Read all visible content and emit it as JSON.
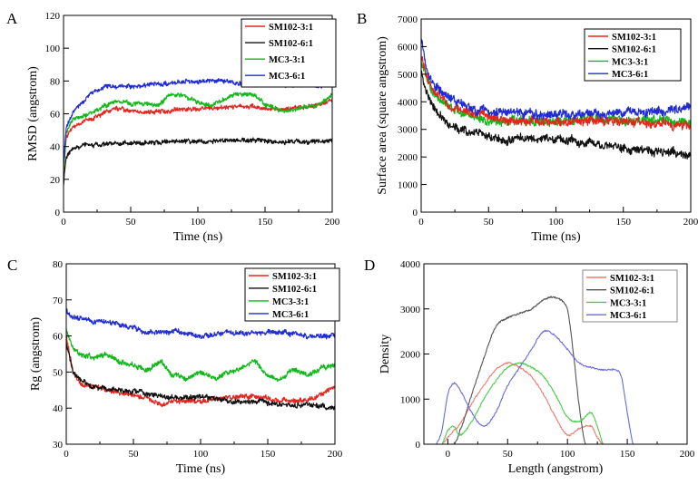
{
  "colors": {
    "SM102-3:1": "#e8231c",
    "SM102-6:1": "#111111",
    "MC3-3:1": "#12b81a",
    "MC3-6:1": "#1f2bd6",
    "D_red": "#f07a70",
    "D_black": "#555555",
    "D_green": "#4ccc4c",
    "D_blue": "#6a6ae0"
  },
  "chart_data": [
    {
      "panel": "A",
      "type": "line",
      "title": "",
      "xlabel": "Time (ns)",
      "ylabel": "RMSD (angstrom)",
      "xlim": [
        0,
        200
      ],
      "ylim": [
        0,
        120
      ],
      "xticks": [
        0,
        50,
        100,
        150,
        200
      ],
      "yticks": [
        0,
        20,
        40,
        60,
        80,
        100,
        120
      ],
      "legend": [
        "SM102-3:1",
        "SM102-6:1",
        "MC3-3:1",
        "MC3-6:1"
      ],
      "legend_position": "top-right",
      "noise": 1.4,
      "series": [
        {
          "name": "SM102-6:1",
          "x": [
            0,
            2,
            5,
            10,
            20,
            40,
            60,
            80,
            100,
            120,
            140,
            160,
            180,
            200
          ],
          "y": [
            18,
            34,
            38,
            40,
            41,
            42,
            42,
            43,
            43,
            44,
            44,
            43,
            43,
            43
          ]
        },
        {
          "name": "SM102-3:1",
          "x": [
            0,
            2,
            5,
            10,
            20,
            30,
            40,
            50,
            60,
            80,
            100,
            120,
            140,
            160,
            180,
            190,
            200
          ],
          "y": [
            25,
            45,
            50,
            54,
            57,
            60,
            63,
            62,
            61,
            62,
            63,
            64,
            64,
            63,
            64,
            65,
            68
          ]
        },
        {
          "name": "MC3-3:1",
          "x": [
            0,
            2,
            5,
            10,
            20,
            30,
            40,
            50,
            60,
            70,
            80,
            90,
            100,
            110,
            120,
            130,
            140,
            150,
            160,
            170,
            180,
            190,
            200
          ],
          "y": [
            25,
            48,
            54,
            57,
            60,
            65,
            68,
            66,
            67,
            65,
            72,
            71,
            67,
            65,
            69,
            72,
            72,
            66,
            62,
            62,
            64,
            65,
            72
          ]
        },
        {
          "name": "MC3-6:1",
          "x": [
            0,
            2,
            5,
            10,
            20,
            30,
            40,
            60,
            80,
            100,
            120,
            140,
            160,
            180,
            200
          ],
          "y": [
            30,
            52,
            58,
            63,
            72,
            76,
            77,
            77,
            79,
            80,
            80,
            78,
            78,
            77,
            78
          ]
        }
      ]
    },
    {
      "panel": "B",
      "type": "line",
      "title": "",
      "xlabel": "Time (ns)",
      "ylabel": "Surface area (square angstrom)",
      "xlim": [
        0,
        200
      ],
      "ylim": [
        0,
        7000
      ],
      "xticks": [
        0,
        50,
        100,
        150,
        200
      ],
      "yticks": [
        0,
        1000,
        2000,
        3000,
        4000,
        5000,
        6000,
        7000
      ],
      "legend": [
        "SM102-3:1",
        "SM102-6:1",
        "MC3-3:1",
        "MC3-6:1"
      ],
      "legend_position": "top-right",
      "noise": 160,
      "series": [
        {
          "name": "MC3-3:1",
          "x": [
            0,
            5,
            10,
            20,
            30,
            50,
            75,
            100,
            125,
            150,
            175,
            200
          ],
          "y": [
            5500,
            4700,
            4200,
            3800,
            3600,
            3300,
            3300,
            3300,
            3400,
            3300,
            3300,
            3300
          ]
        },
        {
          "name": "SM102-3:1",
          "x": [
            0,
            5,
            10,
            20,
            30,
            50,
            75,
            100,
            125,
            150,
            175,
            200
          ],
          "y": [
            5600,
            4800,
            4300,
            3900,
            3700,
            3400,
            3300,
            3300,
            3300,
            3300,
            3200,
            3100
          ]
        },
        {
          "name": "MC3-6:1",
          "x": [
            0,
            5,
            10,
            20,
            30,
            50,
            75,
            100,
            125,
            150,
            175,
            200
          ],
          "y": [
            6300,
            5000,
            4600,
            4100,
            3900,
            3600,
            3600,
            3500,
            3600,
            3600,
            3700,
            3800
          ]
        },
        {
          "name": "SM102-6:1",
          "x": [
            0,
            5,
            10,
            20,
            30,
            50,
            60,
            75,
            100,
            125,
            150,
            175,
            200
          ],
          "y": [
            5000,
            4200,
            3700,
            3200,
            3000,
            2800,
            2600,
            2700,
            2600,
            2500,
            2300,
            2200,
            2000
          ]
        }
      ]
    },
    {
      "panel": "C",
      "type": "line",
      "title": "",
      "xlabel": "Time (ns)",
      "ylabel": "Rg (angstrom)",
      "xlim": [
        0,
        200
      ],
      "ylim": [
        30,
        80
      ],
      "xticks": [
        0,
        50,
        100,
        150,
        200
      ],
      "yticks": [
        30,
        40,
        50,
        60,
        70,
        80
      ],
      "legend": [
        "SM102-3:1",
        "SM102-6:1",
        "MC3-3:1",
        "MC3-6:1"
      ],
      "legend_position": "top-right",
      "noise": 0.7,
      "series": [
        {
          "name": "MC3-6:1",
          "x": [
            0,
            5,
            10,
            20,
            30,
            40,
            50,
            60,
            80,
            100,
            120,
            140,
            160,
            180,
            200
          ],
          "y": [
            67,
            65,
            65,
            64,
            64,
            63,
            62,
            61,
            61,
            60,
            61,
            61,
            61,
            60,
            60
          ]
        },
        {
          "name": "MC3-3:1",
          "x": [
            0,
            5,
            10,
            20,
            30,
            40,
            50,
            60,
            70,
            80,
            90,
            100,
            110,
            120,
            130,
            140,
            150,
            160,
            170,
            180,
            190,
            200
          ],
          "y": [
            62,
            57,
            55,
            54,
            55,
            53,
            52,
            50,
            53,
            49,
            48,
            50,
            48,
            50,
            51,
            53,
            49,
            48,
            51,
            49,
            51,
            52
          ]
        },
        {
          "name": "SM102-3:1",
          "x": [
            0,
            5,
            10,
            20,
            40,
            60,
            70,
            80,
            100,
            120,
            140,
            160,
            180,
            190,
            200
          ],
          "y": [
            60,
            50,
            47,
            46,
            44,
            43,
            41,
            42,
            42,
            43,
            43,
            42,
            42,
            44,
            46
          ]
        },
        {
          "name": "SM102-6:1",
          "x": [
            0,
            5,
            10,
            20,
            40,
            60,
            80,
            100,
            120,
            140,
            160,
            180,
            200
          ],
          "y": [
            58,
            50,
            48,
            46,
            45,
            44,
            43,
            43,
            42,
            42,
            41,
            41,
            40
          ]
        }
      ]
    },
    {
      "panel": "D",
      "type": "line",
      "title": "",
      "xlabel": "Length (angstrom)",
      "ylabel": "Density",
      "xlim": [
        -20,
        200
      ],
      "ylim": [
        0,
        4000
      ],
      "xticks": [
        0,
        50,
        100,
        150,
        200
      ],
      "yticks": [
        0,
        1000,
        2000,
        3000,
        4000
      ],
      "legend": [
        "SM102-3:1",
        "SM102-6:1",
        "MC3-3:1",
        "MC3-6:1"
      ],
      "legend_position": "top-right",
      "noise": 0,
      "series": [
        {
          "name": "SM102-3:1",
          "x": [
            -5,
            0,
            5,
            10,
            20,
            30,
            40,
            50,
            60,
            70,
            80,
            90,
            100,
            110,
            120,
            125,
            130
          ],
          "y": [
            0,
            150,
            300,
            450,
            900,
            1300,
            1650,
            1800,
            1700,
            1500,
            1100,
            600,
            200,
            350,
            400,
            150,
            0
          ]
        },
        {
          "name": "SM102-6:1",
          "x": [
            5,
            10,
            20,
            30,
            40,
            50,
            60,
            70,
            80,
            90,
            100,
            105,
            110,
            115
          ],
          "y": [
            0,
            300,
            1100,
            1900,
            2600,
            2800,
            2900,
            3000,
            3200,
            3250,
            3000,
            2000,
            800,
            0
          ]
        },
        {
          "name": "MC3-3:1",
          "x": [
            -5,
            0,
            5,
            10,
            20,
            30,
            40,
            50,
            60,
            70,
            80,
            90,
            100,
            110,
            120,
            125,
            130
          ],
          "y": [
            0,
            300,
            400,
            200,
            500,
            1000,
            1400,
            1700,
            1800,
            1700,
            1500,
            1100,
            600,
            500,
            700,
            400,
            0
          ]
        },
        {
          "name": "MC3-6:1",
          "x": [
            -10,
            -5,
            0,
            5,
            10,
            20,
            30,
            40,
            50,
            60,
            70,
            80,
            90,
            100,
            110,
            120,
            130,
            140,
            145,
            150,
            155
          ],
          "y": [
            0,
            300,
            1100,
            1350,
            1200,
            700,
            400,
            700,
            1300,
            1700,
            2100,
            2500,
            2400,
            2100,
            1800,
            1700,
            1650,
            1650,
            1500,
            700,
            0
          ]
        }
      ]
    }
  ]
}
